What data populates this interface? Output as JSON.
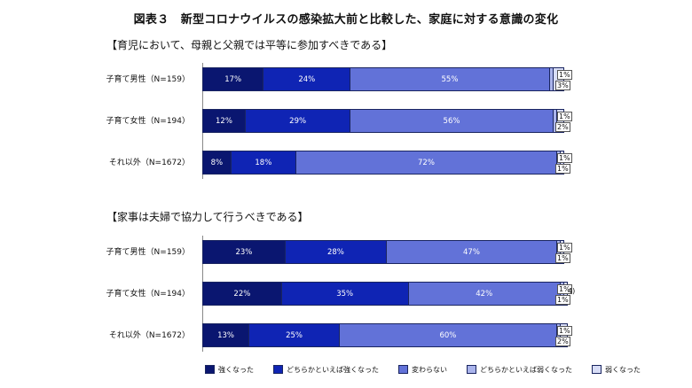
{
  "figure_title": "図表３　新型コロナウイルスの感染拡大前と比較した、家庭に対する意識の変化",
  "colors": [
    "#0a1670",
    "#0f24b4",
    "#6272d8",
    "#aab4ec",
    "#d8ddf6"
  ],
  "chart_data": {
    "type": "bar",
    "orientation": "horizontal",
    "stacked": "percent",
    "legend_position": "bottom",
    "legend": [
      "強くなった",
      "どちらかといえば強くなった",
      "変わらない",
      "どちらかといえば弱くなった",
      "弱くなった"
    ],
    "panels": [
      {
        "title": "【育児において、母親と父親では平等に参加すべきである】",
        "categories": [
          "子育て男性（N=159）",
          "子育て女性（N=194）",
          "それ以外（N=1672）"
        ],
        "series": [
          {
            "name": "強くなった",
            "values": [
              17,
              12,
              8
            ],
            "labels": [
              "17%",
              "12%",
              "8%"
            ]
          },
          {
            "name": "どちらかといえば強くなった",
            "values": [
              24,
              29,
              18
            ],
            "labels": [
              "24%",
              "29%",
              "18%"
            ]
          },
          {
            "name": "変わらない",
            "values": [
              55,
              56,
              72
            ],
            "labels": [
              "55%",
              "56%",
              "72%"
            ]
          },
          {
            "name": "どちらかといえば弱くなった",
            "values": [
              1,
              1,
              1
            ],
            "labels": [
              "1%",
              "1%",
              "1%"
            ]
          },
          {
            "name": "弱くなった",
            "values": [
              3,
              2,
              1
            ],
            "labels": [
              "3%",
              "2%",
              "1%"
            ]
          }
        ]
      },
      {
        "title": "【家事は夫婦で協力して行うべきである】",
        "categories": [
          "子育て男性（N=159）",
          "子育て女性（N=194）",
          "それ以外（N=1672）"
        ],
        "series": [
          {
            "name": "強くなった",
            "values": [
              23,
              22,
              13
            ],
            "labels": [
              "23%",
              "22%",
              "13%"
            ]
          },
          {
            "name": "どちらかといえば強くなった",
            "values": [
              28,
              35,
              25
            ],
            "labels": [
              "28%",
              "35%",
              "25%"
            ]
          },
          {
            "name": "変わらない",
            "values": [
              47,
              42,
              60
            ],
            "labels": [
              "47%",
              "42%",
              "60%"
            ]
          },
          {
            "name": "どちらかといえば弱くなった",
            "values": [
              1,
              1,
              1
            ],
            "labels": [
              "1%",
              "1%",
              "1%"
            ]
          },
          {
            "name": "弱くなった",
            "values": [
              1,
              1,
              2
            ],
            "labels": [
              "1%",
              "1%",
              "2%"
            ]
          }
        ]
      }
    ],
    "extra_label": "4)"
  }
}
